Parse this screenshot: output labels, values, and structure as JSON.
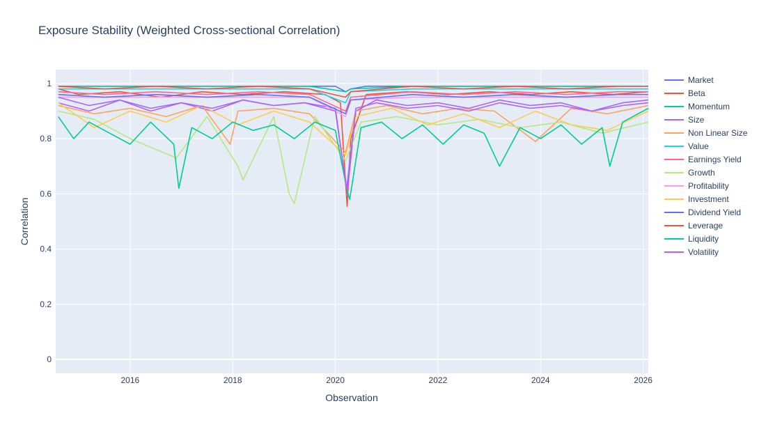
{
  "chart_data": {
    "type": "line",
    "title": "Exposure Stability (Weighted Cross-sectional Correlation)",
    "xlabel": "Observation",
    "ylabel": "Correlation",
    "xlim": [
      2014.55,
      2026.1
    ],
    "ylim": [
      -0.05,
      1.05
    ],
    "x_ticks": [
      2016,
      2018,
      2020,
      2022,
      2024,
      2026
    ],
    "x_tick_labels": [
      "2016",
      "2018",
      "2020",
      "2022",
      "2024",
      "2026"
    ],
    "y_ticks": [
      0,
      0.2,
      0.4,
      0.6,
      0.8,
      1
    ],
    "y_tick_labels": [
      "0",
      "0.2",
      "0.4",
      "0.6",
      "0.8",
      "1"
    ],
    "grid": true,
    "legend_position": "right",
    "plot_background": "#e5ecf6",
    "series": [
      {
        "name": "Market",
        "color": "#636efa",
        "x": [
          2014.6,
          2015.5,
          2016.5,
          2017.5,
          2018.5,
          2019.5,
          2020.0,
          2020.2,
          2020.3,
          2020.6,
          2021.5,
          2022.5,
          2023.5,
          2024.5,
          2025.5,
          2026.1
        ],
        "y": [
          0.99,
          0.99,
          0.99,
          0.99,
          0.99,
          0.99,
          0.99,
          0.97,
          0.98,
          0.99,
          0.99,
          0.99,
          0.99,
          0.99,
          0.99,
          0.99
        ]
      },
      {
        "name": "Beta",
        "color": "#ef553b",
        "x": [
          2014.6,
          2015.0,
          2015.8,
          2016.6,
          2017.4,
          2018.2,
          2019.0,
          2019.8,
          2020.1,
          2020.23,
          2020.3,
          2020.6,
          2021.4,
          2022.2,
          2023.0,
          2023.8,
          2024.6,
          2025.4,
          2026.1
        ],
        "y": [
          0.98,
          0.96,
          0.97,
          0.95,
          0.97,
          0.96,
          0.97,
          0.96,
          0.93,
          0.555,
          0.8,
          0.96,
          0.97,
          0.96,
          0.97,
          0.96,
          0.97,
          0.96,
          0.97
        ]
      },
      {
        "name": "Momentum",
        "color": "#00cc96",
        "x": [
          2014.6,
          2015.5,
          2016.5,
          2017.5,
          2018.5,
          2019.5,
          2020.2,
          2020.3,
          2021.5,
          2022.5,
          2023.5,
          2024.5,
          2025.5,
          2026.1
        ],
        "y": [
          0.99,
          0.99,
          0.99,
          0.99,
          0.99,
          0.99,
          0.97,
          0.98,
          0.99,
          0.99,
          0.99,
          0.99,
          0.99,
          0.99
        ]
      },
      {
        "name": "Size",
        "color": "#ab63fa",
        "x": [
          2014.6,
          2015.2,
          2015.8,
          2016.4,
          2017.0,
          2017.6,
          2018.2,
          2018.8,
          2019.4,
          2020.0,
          2020.23,
          2020.4,
          2020.8,
          2021.4,
          2022.0,
          2022.6,
          2023.2,
          2023.8,
          2024.4,
          2025.0,
          2025.6,
          2026.1
        ],
        "y": [
          0.93,
          0.9,
          0.94,
          0.91,
          0.93,
          0.9,
          0.94,
          0.92,
          0.93,
          0.91,
          0.6,
          0.9,
          0.94,
          0.92,
          0.93,
          0.91,
          0.94,
          0.92,
          0.93,
          0.9,
          0.93,
          0.94
        ]
      },
      {
        "name": "Non Linear Size",
        "color": "#ffa15a",
        "x": [
          2014.6,
          2015.3,
          2016.0,
          2016.7,
          2017.4,
          2017.95,
          2018.1,
          2018.8,
          2019.5,
          2020.2,
          2020.4,
          2021.0,
          2021.7,
          2022.4,
          2023.1,
          2023.9,
          2024.6,
          2025.3,
          2026.1
        ],
        "y": [
          0.92,
          0.89,
          0.91,
          0.88,
          0.92,
          0.78,
          0.9,
          0.91,
          0.89,
          0.75,
          0.9,
          0.92,
          0.89,
          0.91,
          0.9,
          0.79,
          0.91,
          0.89,
          0.92
        ]
      },
      {
        "name": "Value",
        "color": "#19d3f3",
        "x": [
          2014.6,
          2015.5,
          2016.5,
          2017.5,
          2018.5,
          2019.5,
          2020.2,
          2020.3,
          2021.5,
          2022.5,
          2023.5,
          2024.5,
          2025.5,
          2026.1
        ],
        "y": [
          0.98,
          0.98,
          0.98,
          0.98,
          0.98,
          0.98,
          0.93,
          0.97,
          0.98,
          0.98,
          0.98,
          0.98,
          0.98,
          0.98
        ]
      },
      {
        "name": "Earnings Yield",
        "color": "#ff6692",
        "x": [
          2014.6,
          2015.5,
          2016.5,
          2017.5,
          2018.5,
          2019.5,
          2020.2,
          2020.3,
          2021.5,
          2022.5,
          2023.5,
          2024.5,
          2025.5,
          2026.1
        ],
        "y": [
          0.97,
          0.96,
          0.97,
          0.96,
          0.97,
          0.96,
          0.9,
          0.95,
          0.97,
          0.96,
          0.97,
          0.96,
          0.97,
          0.97
        ]
      },
      {
        "name": "Growth",
        "color": "#b6e880",
        "x": [
          2014.6,
          2015.3,
          2016.0,
          2016.9,
          2017.5,
          2018.1,
          2018.2,
          2018.8,
          2019.1,
          2019.2,
          2019.6,
          2020.2,
          2020.5,
          2021.2,
          2022.0,
          2022.8,
          2023.6,
          2024.4,
          2025.2,
          2026.1
        ],
        "y": [
          0.9,
          0.87,
          0.8,
          0.73,
          0.88,
          0.7,
          0.65,
          0.88,
          0.6,
          0.565,
          0.88,
          0.72,
          0.86,
          0.88,
          0.85,
          0.87,
          0.84,
          0.86,
          0.82,
          0.86
        ]
      },
      {
        "name": "Profitability",
        "color": "#ff97ff",
        "x": [
          2014.6,
          2015.5,
          2016.5,
          2017.5,
          2018.5,
          2019.5,
          2020.2,
          2020.3,
          2021.5,
          2022.5,
          2023.5,
          2024.5,
          2025.5,
          2026.1
        ],
        "y": [
          0.95,
          0.95,
          0.95,
          0.95,
          0.95,
          0.95,
          0.88,
          0.94,
          0.95,
          0.95,
          0.95,
          0.95,
          0.95,
          0.95
        ]
      },
      {
        "name": "Investment",
        "color": "#fecb52",
        "x": [
          2014.6,
          2015.3,
          2016.0,
          2016.7,
          2017.4,
          2018.1,
          2018.8,
          2019.5,
          2020.2,
          2020.4,
          2021.1,
          2021.8,
          2022.5,
          2023.2,
          2023.9,
          2024.6,
          2025.3,
          2026.1
        ],
        "y": [
          0.93,
          0.84,
          0.9,
          0.86,
          0.92,
          0.85,
          0.9,
          0.86,
          0.74,
          0.88,
          0.91,
          0.85,
          0.89,
          0.84,
          0.9,
          0.85,
          0.83,
          0.9
        ]
      },
      {
        "name": "Dividend Yield",
        "color": "#636efa",
        "x": [
          2014.6,
          2015.5,
          2016.5,
          2017.5,
          2018.5,
          2019.5,
          2020.2,
          2020.3,
          2021.5,
          2022.5,
          2023.5,
          2024.5,
          2025.5,
          2026.1
        ],
        "y": [
          0.96,
          0.95,
          0.96,
          0.95,
          0.96,
          0.95,
          0.89,
          0.94,
          0.96,
          0.95,
          0.96,
          0.95,
          0.96,
          0.96
        ]
      },
      {
        "name": "Leverage",
        "color": "#ef553b",
        "x": [
          2014.6,
          2015.5,
          2016.5,
          2017.5,
          2018.5,
          2019.5,
          2020.2,
          2020.3,
          2021.5,
          2022.5,
          2023.5,
          2024.5,
          2025.5,
          2026.1
        ],
        "y": [
          0.99,
          0.98,
          0.99,
          0.98,
          0.99,
          0.98,
          0.95,
          0.97,
          0.99,
          0.98,
          0.99,
          0.98,
          0.99,
          0.99
        ]
      },
      {
        "name": "Liquidity",
        "color": "#00cc96",
        "x": [
          2014.6,
          2014.9,
          2015.2,
          2015.6,
          2016.0,
          2016.4,
          2016.85,
          2016.95,
          2017.2,
          2017.6,
          2018.0,
          2018.4,
          2018.8,
          2019.2,
          2019.6,
          2020.0,
          2020.22,
          2020.28,
          2020.5,
          2020.9,
          2021.3,
          2021.7,
          2022.1,
          2022.5,
          2022.9,
          2023.2,
          2023.6,
          2024.0,
          2024.4,
          2024.8,
          2025.2,
          2025.35,
          2025.6,
          2026.1
        ],
        "y": [
          0.88,
          0.8,
          0.86,
          0.82,
          0.78,
          0.86,
          0.78,
          0.62,
          0.84,
          0.8,
          0.86,
          0.83,
          0.85,
          0.8,
          0.86,
          0.83,
          0.62,
          0.58,
          0.84,
          0.86,
          0.8,
          0.85,
          0.78,
          0.85,
          0.82,
          0.7,
          0.84,
          0.8,
          0.85,
          0.78,
          0.84,
          0.7,
          0.86,
          0.91
        ]
      },
      {
        "name": "Volatility",
        "color": "#ab63fa",
        "x": [
          2014.6,
          2015.2,
          2015.8,
          2016.4,
          2017.0,
          2017.6,
          2018.2,
          2018.8,
          2019.4,
          2020.0,
          2020.22,
          2020.4,
          2020.8,
          2021.4,
          2022.0,
          2022.6,
          2023.2,
          2023.8,
          2024.4,
          2025.0,
          2025.6,
          2026.1
        ],
        "y": [
          0.95,
          0.92,
          0.94,
          0.9,
          0.93,
          0.91,
          0.94,
          0.92,
          0.93,
          0.9,
          0.62,
          0.91,
          0.93,
          0.91,
          0.92,
          0.9,
          0.93,
          0.91,
          0.92,
          0.9,
          0.92,
          0.93
        ]
      }
    ]
  }
}
